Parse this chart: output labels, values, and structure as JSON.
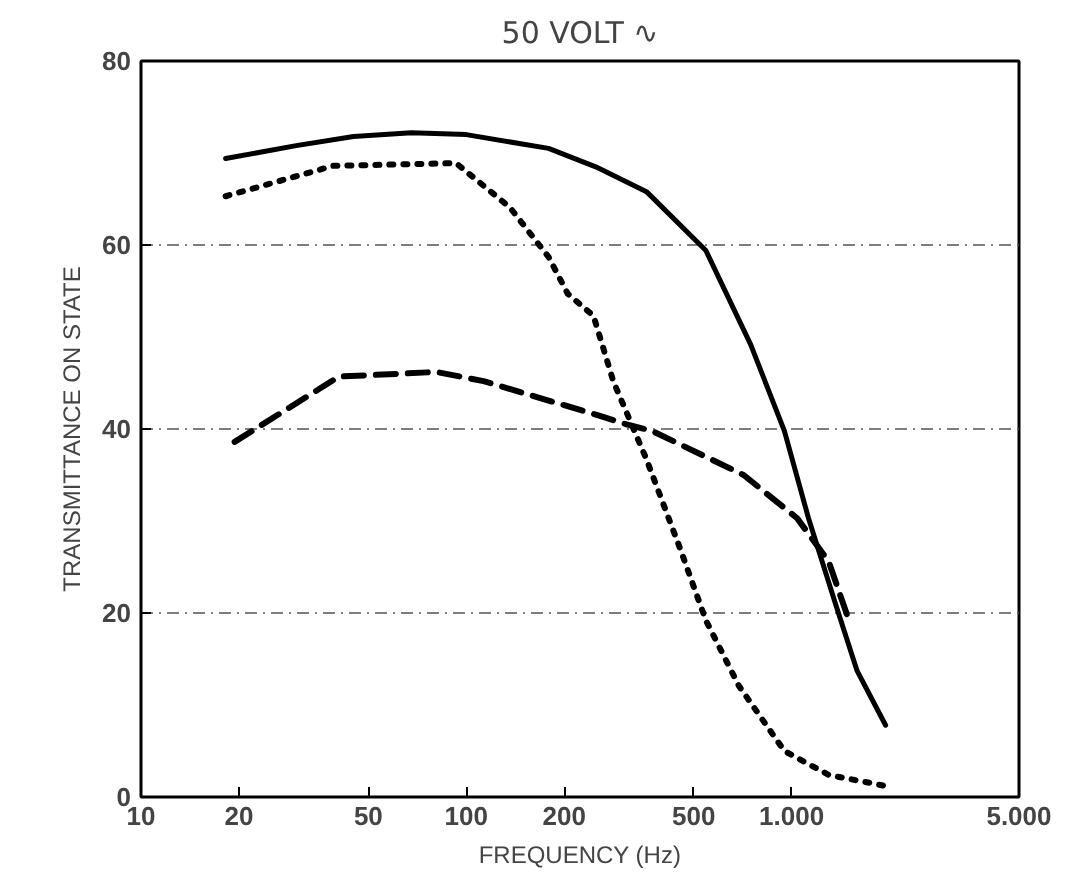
{
  "chart_data": {
    "type": "line",
    "title": "50 VOLT ∿",
    "xlabel": "FREQUENCY (Hz)",
    "ylabel": "TRANSMITTANCE ON STATE",
    "log": "x",
    "grid": "y",
    "marker": "none",
    "xlim": [
      10,
      5000
    ],
    "ylim": [
      0,
      80
    ],
    "xticks": [
      10,
      20,
      50,
      100,
      200,
      500,
      {
        "value": 1000,
        "label": "1.000"
      },
      {
        "value": 5000,
        "label": "5.000"
      }
    ],
    "yticks": [
      0,
      20,
      40,
      60,
      80
    ],
    "series": [
      {
        "color": "#000000",
        "line_style": "solid",
        "x": [
          18.2,
          30,
          45,
          67.8,
          100,
          179,
          250,
          358,
          545,
          748,
          950,
          1127,
          1370,
          1590,
          1945
        ],
        "values": [
          69.4,
          70.8,
          71.8,
          72.2,
          72,
          70.5,
          68.5,
          65.8,
          59.4,
          49.2,
          39.8,
          30.3,
          20.8,
          13.7,
          7.8
        ]
      },
      {
        "color": "#000000",
        "line_style": "dotted",
        "x": [
          18.2,
          38.9,
          93,
          136,
          179,
          205,
          246,
          283,
          358,
          452,
          545,
          688,
          950,
          1300,
          1945
        ],
        "values": [
          65.3,
          68.6,
          68.9,
          64.1,
          58.7,
          54.7,
          52.3,
          45.2,
          36.7,
          27.2,
          19.2,
          12.1,
          5.0,
          2.4,
          1.2
        ]
      },
      {
        "color": "#000000",
        "line_style": "dashed",
        "x": [
          19.4,
          40.6,
          81,
          113,
          259,
          311,
          372,
          712,
          1040,
          1300,
          1500
        ],
        "values": [
          38.6,
          45.7,
          46.2,
          45.2,
          41.4,
          40.5,
          39.8,
          35.0,
          30.3,
          25.6,
          19.2
        ]
      }
    ]
  }
}
